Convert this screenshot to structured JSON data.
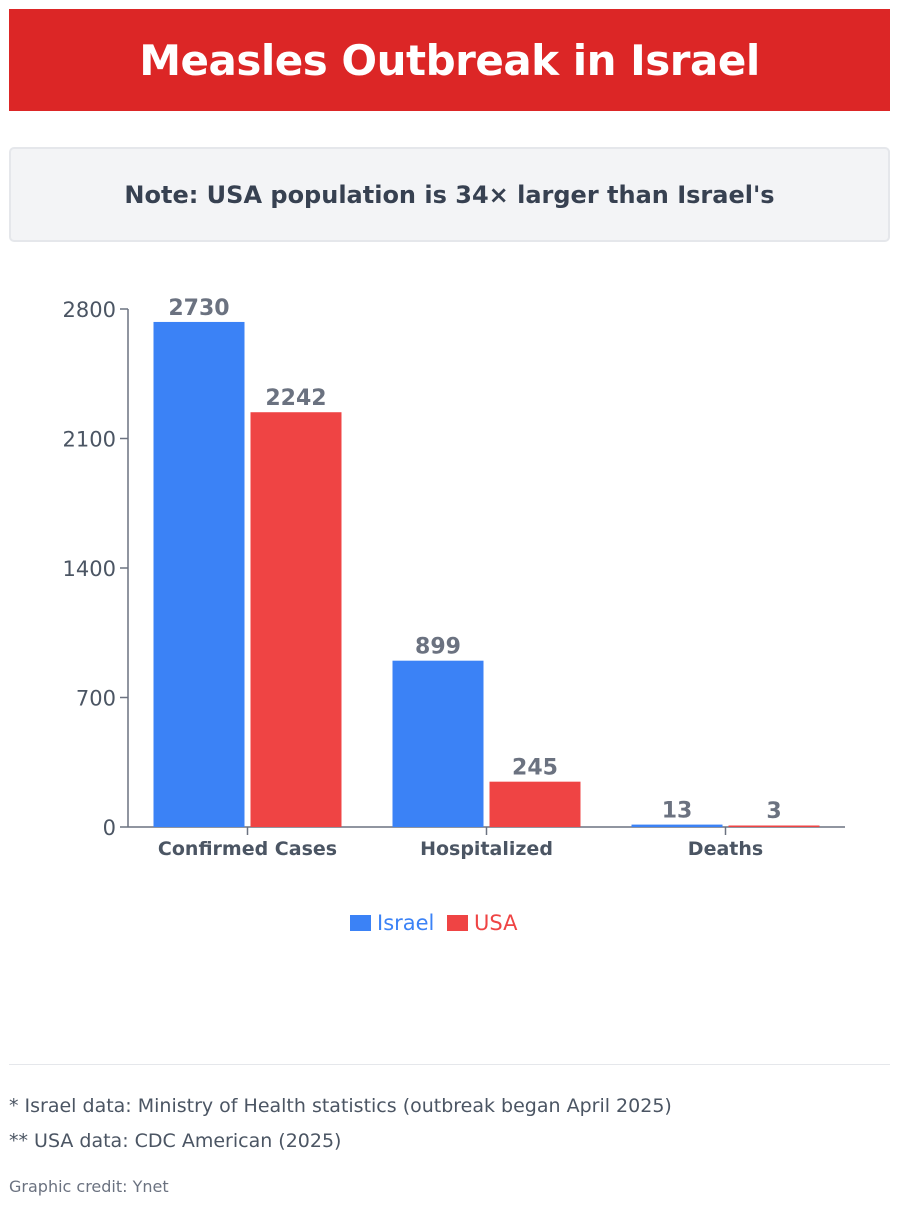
{
  "header": {
    "title": "Measles Outbreak in Israel"
  },
  "note": {
    "text": "Note: USA population is 34× larger than Israel's"
  },
  "chart_data": {
    "type": "bar",
    "categories": [
      "Confirmed Cases",
      "Hospitalized",
      "Deaths"
    ],
    "series": [
      {
        "name": "Israel",
        "values": [
          2730,
          899,
          13
        ],
        "color": "#3b82f6"
      },
      {
        "name": "USA",
        "values": [
          2242,
          245,
          3
        ],
        "color": "#ef4444"
      }
    ],
    "yticks": [
      0,
      700,
      1400,
      2100,
      2800
    ],
    "ylim": [
      0,
      2800
    ],
    "legend_position": "bottom-center",
    "grid": false
  },
  "footnotes": {
    "israel": "* Israel data: Ministry of Health statistics (outbreak began April 2025)",
    "usa": "** USA data: CDC American (2025)"
  },
  "credit": "Graphic credit: Ynet"
}
